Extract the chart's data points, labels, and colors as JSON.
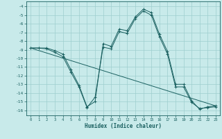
{
  "xlabel": "Humidex (Indice chaleur)",
  "bg_color": "#c8eaea",
  "grid_color": "#9ecece",
  "line_color": "#1a6060",
  "xlim": [
    -0.5,
    23.5
  ],
  "ylim": [
    -16.6,
    -3.4
  ],
  "yticks": [
    -4,
    -5,
    -6,
    -7,
    -8,
    -9,
    -10,
    -11,
    -12,
    -13,
    -14,
    -15,
    -16
  ],
  "xticks": [
    0,
    1,
    2,
    3,
    4,
    5,
    6,
    7,
    8,
    9,
    10,
    11,
    12,
    13,
    14,
    15,
    16,
    17,
    18,
    19,
    20,
    21,
    22,
    23
  ],
  "series1_x": [
    0,
    1,
    2,
    3,
    4,
    5,
    6,
    7,
    8,
    9,
    10,
    11,
    12,
    13,
    14,
    15,
    16,
    17,
    18,
    19,
    20,
    21,
    22,
    23
  ],
  "series1_y": [
    -8.8,
    -8.8,
    -8.8,
    -9.1,
    -9.5,
    -11.3,
    -13.1,
    -15.6,
    -15.0,
    -8.3,
    -8.6,
    -6.6,
    -6.8,
    -5.2,
    -4.3,
    -4.7,
    -7.2,
    -9.2,
    -13.0,
    -13.0,
    -14.9,
    -15.9,
    -15.6,
    -15.5
  ],
  "series2_x": [
    0,
    1,
    2,
    3,
    4,
    5,
    6,
    7,
    8,
    9,
    10,
    11,
    12,
    13,
    14,
    15,
    16,
    17,
    18,
    19,
    20,
    21,
    22,
    23
  ],
  "series2_y": [
    -8.8,
    -8.8,
    -8.9,
    -9.3,
    -9.8,
    -11.6,
    -13.3,
    -15.7,
    -14.5,
    -8.7,
    -8.9,
    -6.9,
    -7.1,
    -5.4,
    -4.5,
    -5.0,
    -7.5,
    -9.5,
    -13.3,
    -13.3,
    -15.1,
    -15.8,
    -15.7,
    -15.6
  ],
  "series3_x": [
    0,
    23
  ],
  "series3_y": [
    -8.8,
    -15.5
  ]
}
